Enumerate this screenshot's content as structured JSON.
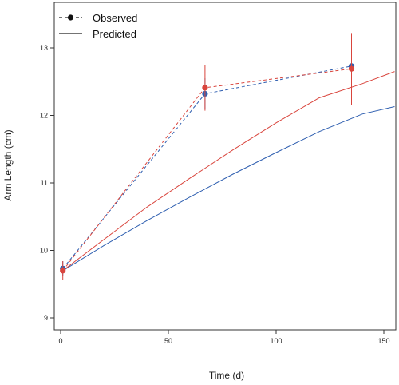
{
  "chart_data": {
    "type": "line",
    "xlabel": "Time (d)",
    "ylabel": "Arm Length (cm)",
    "xlim": [
      -2,
      155
    ],
    "ylim": [
      8.8,
      13.5
    ],
    "xticks": [
      0,
      50,
      100,
      150
    ],
    "yticks": [
      9,
      10,
      11,
      12,
      13
    ],
    "grid": false,
    "legend_position": "top-left",
    "legend": [
      {
        "label": "Observed",
        "style": "dashed-with-points"
      },
      {
        "label": "Predicted",
        "style": "solid"
      }
    ],
    "observed": [
      {
        "color": "#2f5fb0",
        "points": [
          {
            "x": 1,
            "y": 9.73,
            "err_low": 9.62,
            "err_high": 9.84
          },
          {
            "x": 67,
            "y": 12.32,
            "err_low": 12.09,
            "err_high": 12.55
          },
          {
            "x": 135,
            "y": 12.73,
            "err_low": 12.62,
            "err_high": 12.84
          }
        ]
      },
      {
        "color": "#d9453d",
        "points": [
          {
            "x": 1,
            "y": 9.7,
            "err_low": 9.56,
            "err_high": 9.84
          },
          {
            "x": 67,
            "y": 12.41,
            "err_low": 12.07,
            "err_high": 12.75
          },
          {
            "x": 135,
            "y": 12.69,
            "err_low": 12.16,
            "err_high": 13.22
          }
        ]
      }
    ],
    "predicted": [
      {
        "color": "#2f5fb0",
        "x": [
          1,
          20,
          40,
          60,
          80,
          100,
          120,
          140,
          155
        ],
        "y": [
          9.7,
          10.07,
          10.44,
          10.79,
          11.13,
          11.45,
          11.76,
          12.02,
          12.13
        ]
      },
      {
        "color": "#d9453d",
        "x": [
          1,
          20,
          40,
          60,
          80,
          100,
          120,
          140,
          155
        ],
        "y": [
          9.7,
          10.16,
          10.64,
          11.07,
          11.49,
          11.89,
          12.26,
          12.47,
          12.65
        ]
      }
    ]
  }
}
